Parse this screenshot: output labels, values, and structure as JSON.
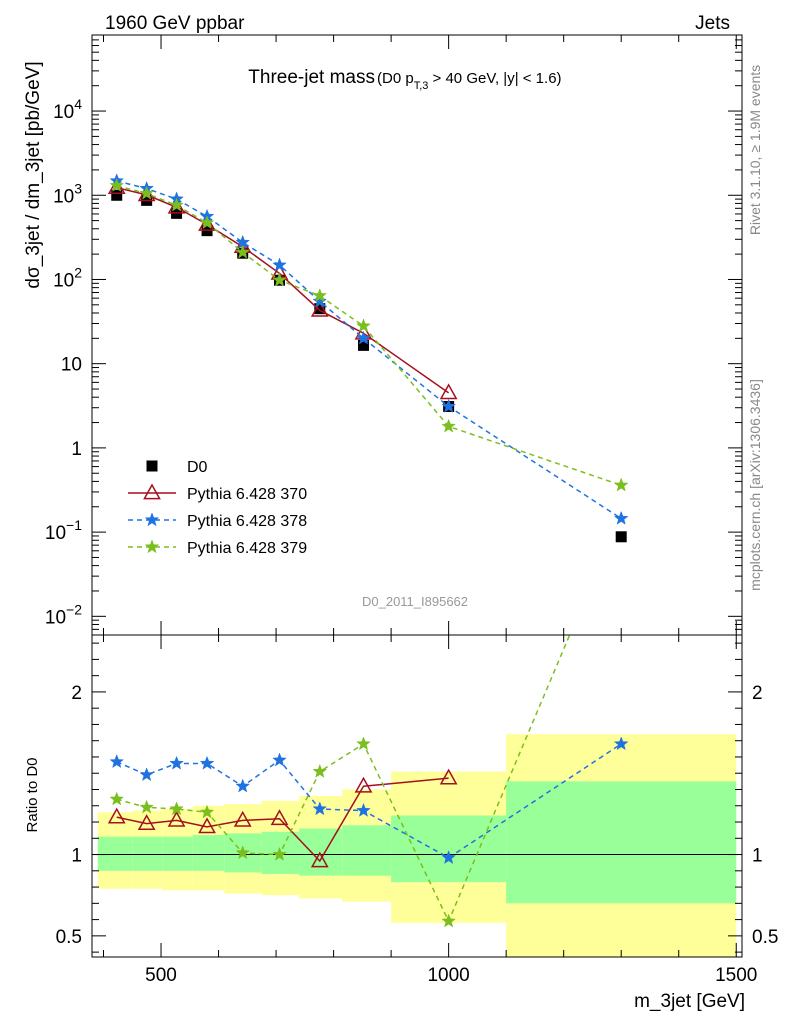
{
  "header": {
    "left": "1960 GeV ppbar",
    "right": "Jets"
  },
  "side_labels": {
    "rivet": "Rivet 3.1.10, ≥ 1.9M events",
    "mcplots": "mcplots.cern.ch [arXiv:1306.3436]"
  },
  "watermark": "D0_2011_I895662",
  "colors": {
    "data": "#000000",
    "p370": "#a50f1f",
    "p378": "#1f73e0",
    "p379": "#7bbf1f",
    "band_outer": "#ffff99",
    "band_inner": "#99ff99"
  },
  "chart_data": [
    {
      "type": "scatter",
      "title": "Three-jet mass",
      "subtitle": "(D0 p",
      "subtitle_sub": "T,3",
      "subtitle_tail": " > 40 GeV, |y| < 1.6)",
      "ylabel": "dσ_3jet / dm_3jet [pb/GeV]",
      "xlim": [
        380,
        1510
      ],
      "ylim": [
        0.006,
        80000
      ],
      "yscale": "log",
      "y_ticks": [
        "10^4",
        "10^3",
        "10^2",
        "10",
        "1",
        "10^-1",
        "10^-2"
      ],
      "legend": {
        "position": "bottom-left",
        "entries": [
          "D0",
          "Pythia 6.428 370",
          "Pythia 6.428 378",
          "Pythia 6.428 379"
        ]
      },
      "x": [
        423,
        475,
        527,
        580,
        642,
        706,
        776,
        852,
        1000,
        1300
      ],
      "series": [
        {
          "name": "D0",
          "values": [
            1000,
            870,
            610,
            380,
            205,
            98,
            45,
            16.5,
            3.1,
            0.088
          ]
        },
        {
          "name": "Pythia 6.428 370",
          "values": [
            1230,
            1010,
            720,
            450,
            245,
            118,
            43,
            23,
            4.5,
            null
          ]
        },
        {
          "name": "Pythia 6.428 378",
          "values": [
            1480,
            1200,
            900,
            560,
            275,
            148,
            55,
            20,
            3.1,
            0.145
          ]
        },
        {
          "name": "Pythia 6.428 379",
          "values": [
            1300,
            1050,
            760,
            470,
            210,
            98,
            64,
            28,
            1.8,
            0.36
          ]
        }
      ]
    },
    {
      "type": "line",
      "xlabel": "m_3jet [GeV]",
      "ylabel": "Ratio to D0",
      "xlim": [
        380,
        1510
      ],
      "ylim": [
        0.37,
        2.35
      ],
      "x_ticks": [
        "500",
        "1000",
        "1500"
      ],
      "y_ticks": [
        "0.5",
        "1",
        "2"
      ],
      "x": [
        423,
        475,
        527,
        580,
        642,
        706,
        776,
        852,
        1000,
        1300
      ],
      "series": [
        {
          "name": "Pythia 6.428 370",
          "values": [
            1.23,
            1.19,
            1.21,
            1.17,
            1.21,
            1.22,
            0.96,
            1.42,
            1.47,
            null
          ]
        },
        {
          "name": "Pythia 6.428 378",
          "values": [
            1.57,
            1.49,
            1.56,
            1.56,
            1.42,
            1.58,
            1.28,
            1.27,
            0.98,
            1.68
          ]
        },
        {
          "name": "Pythia 6.428 379",
          "values": [
            1.34,
            1.29,
            1.28,
            1.26,
            1.01,
            1.0,
            1.51,
            1.68,
            0.59,
            3.1
          ]
        }
      ],
      "bands": {
        "bins": [
          [
            390,
            450
          ],
          [
            450,
            502
          ],
          [
            502,
            555
          ],
          [
            555,
            610
          ],
          [
            610,
            675
          ],
          [
            675,
            740
          ],
          [
            740,
            815
          ],
          [
            815,
            900
          ],
          [
            900,
            1100
          ],
          [
            1100,
            1500
          ]
        ],
        "inner_low": [
          0.9,
          0.9,
          0.9,
          0.9,
          0.89,
          0.88,
          0.87,
          0.87,
          0.83,
          0.7
        ],
        "inner_high": [
          1.11,
          1.11,
          1.11,
          1.12,
          1.13,
          1.14,
          1.16,
          1.18,
          1.24,
          1.45
        ],
        "outer_low": [
          0.79,
          0.79,
          0.78,
          0.78,
          0.76,
          0.75,
          0.73,
          0.71,
          0.58,
          0.32
        ],
        "outer_high": [
          1.26,
          1.27,
          1.28,
          1.3,
          1.31,
          1.33,
          1.36,
          1.4,
          1.51,
          1.74
        ]
      }
    }
  ]
}
